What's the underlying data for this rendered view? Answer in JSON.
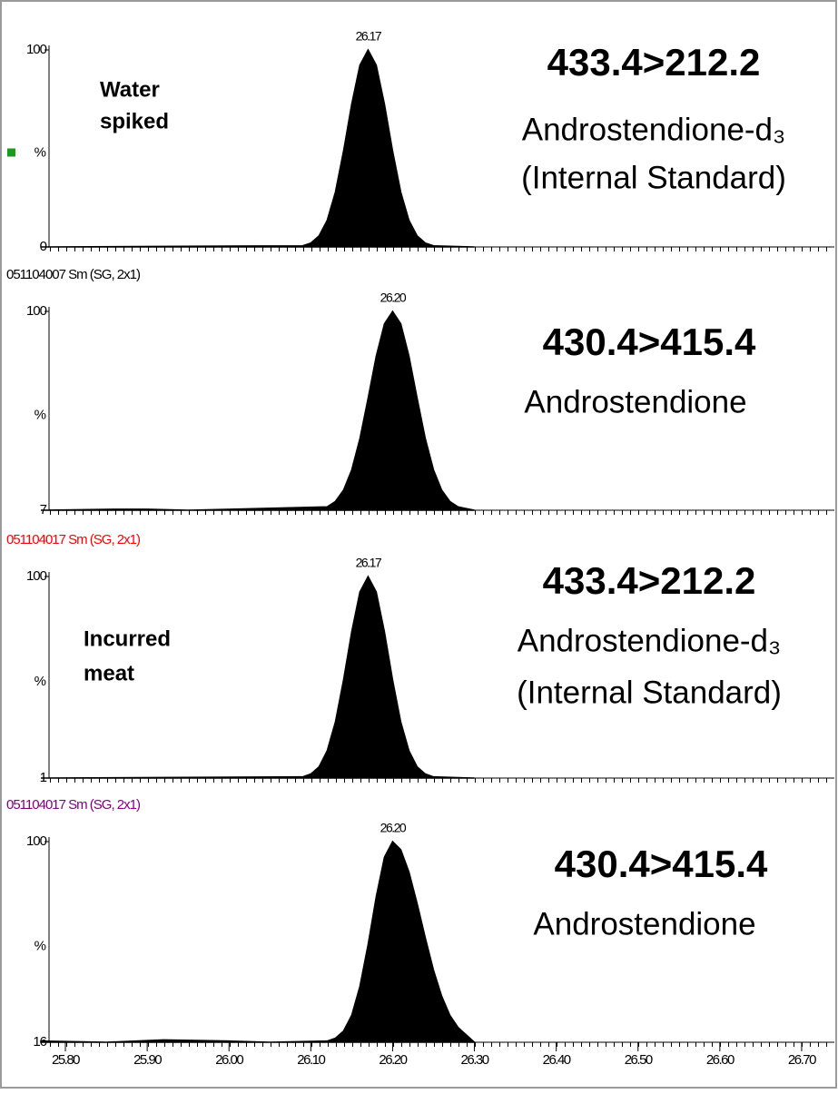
{
  "chart_data": [
    {
      "type": "area",
      "color": "#000000",
      "sample": [
        "Water",
        "spiked"
      ],
      "transition": "433.4>212.2",
      "compound": "Androstendione-d₃",
      "note": "(Internal Standard)",
      "peak_label": "26.17",
      "y_label": "%",
      "xlim": [
        25.78,
        26.74
      ],
      "ylim": [
        0,
        100
      ],
      "yticks": [
        0,
        100
      ],
      "x": [
        25.77,
        26.09,
        26.1,
        26.11,
        26.12,
        26.13,
        26.14,
        26.15,
        26.16,
        26.17,
        26.18,
        26.19,
        26.2,
        26.21,
        26.22,
        26.23,
        26.24,
        26.25,
        26.3
      ],
      "values": [
        0,
        0.6,
        2.0,
        5.6,
        13.5,
        27.8,
        48.7,
        72.6,
        92.3,
        100,
        92.3,
        72.6,
        48.7,
        27.8,
        13.5,
        5.6,
        2.0,
        0.6,
        0
      ]
    },
    {
      "type": "area",
      "color": "#000000",
      "file_label": "051104007 Sm (SG, 2x1)",
      "file_label_color": "#000000",
      "transition": "430.4>415.4",
      "compound": "Androstendione",
      "peak_label": "26.20",
      "y_label": "%",
      "xlim": [
        25.78,
        26.74
      ],
      "ylim": [
        7,
        100
      ],
      "yticks": [
        7,
        100
      ],
      "x": [
        25.77,
        25.86,
        25.9,
        25.95,
        26.12,
        26.13,
        26.14,
        26.15,
        26.16,
        26.17,
        26.18,
        26.19,
        26.2,
        26.21,
        26.22,
        26.23,
        26.24,
        26.25,
        26.26,
        26.27,
        26.28,
        26.3
      ],
      "values": [
        7,
        7.5,
        7.5,
        7,
        8.6,
        11.1,
        16.4,
        25.9,
        40.5,
        59.4,
        79.1,
        94.2,
        100,
        94.2,
        79.1,
        59.4,
        40.5,
        25.9,
        16.4,
        11.1,
        8.6,
        7
      ]
    },
    {
      "type": "area",
      "color": "#000000",
      "file_label": "051104017 Sm (SG, 2x1)",
      "file_label_color": "#ff0000",
      "sample": [
        "Incurred",
        "meat"
      ],
      "transition": "433.4>212.2",
      "compound": "Androstendione-d₃",
      "note": "(Internal Standard)",
      "peak_label": "26.17",
      "y_label": "%",
      "xlim": [
        25.78,
        26.74
      ],
      "ylim": [
        1,
        100
      ],
      "yticks": [
        1,
        100
      ],
      "x": [
        25.77,
        26.09,
        26.1,
        26.11,
        26.12,
        26.13,
        26.14,
        26.15,
        26.16,
        26.17,
        26.18,
        26.19,
        26.2,
        26.21,
        26.22,
        26.23,
        26.24,
        26.25,
        26.3
      ],
      "values": [
        1,
        1.6,
        3.0,
        6.5,
        14.4,
        28.5,
        49.2,
        72.9,
        92.4,
        100,
        92.4,
        72.9,
        49.2,
        28.5,
        14.4,
        6.5,
        3.0,
        1.6,
        1
      ]
    },
    {
      "type": "area",
      "color": "#000000",
      "file_label": "051104017 Sm (SG, 2x1)",
      "file_label_color": "#800080",
      "transition": "430.4>415.4",
      "compound": "Androstendione",
      "peak_label": "26.20",
      "y_label": "%",
      "xlim": [
        25.78,
        26.74
      ],
      "ylim": [
        16,
        100
      ],
      "yticks": [
        16,
        100
      ],
      "xticks": [
        {
          "value": 25.8,
          "label": "25.80"
        },
        {
          "value": 25.9,
          "label": "25.90"
        },
        {
          "value": 26.0,
          "label": "26.00"
        },
        {
          "value": 26.1,
          "label": "26.10"
        },
        {
          "value": 26.2,
          "label": "26.20"
        },
        {
          "value": 26.3,
          "label": "26.30"
        },
        {
          "value": 26.4,
          "label": "26.40"
        },
        {
          "value": 26.5,
          "label": "26.50"
        },
        {
          "value": 26.6,
          "label": "26.60"
        },
        {
          "value": 26.7,
          "label": "26.70"
        }
      ],
      "x": [
        25.77,
        25.85,
        25.92,
        26.0,
        26.05,
        26.12,
        26.13,
        26.14,
        26.15,
        26.16,
        26.17,
        26.18,
        26.19,
        26.2,
        26.21,
        26.22,
        26.23,
        26.24,
        26.25,
        26.26,
        26.27,
        26.28,
        26.29,
        26.3
      ],
      "values": [
        16.5,
        16,
        17,
        16.5,
        16,
        16.5,
        17.7,
        20.7,
        27.3,
        39.4,
        56.9,
        77.0,
        93.5,
        100,
        96.6,
        87.3,
        74.1,
        59.7,
        46.2,
        35.3,
        27.3,
        22.2,
        19.1,
        16
      ]
    }
  ]
}
